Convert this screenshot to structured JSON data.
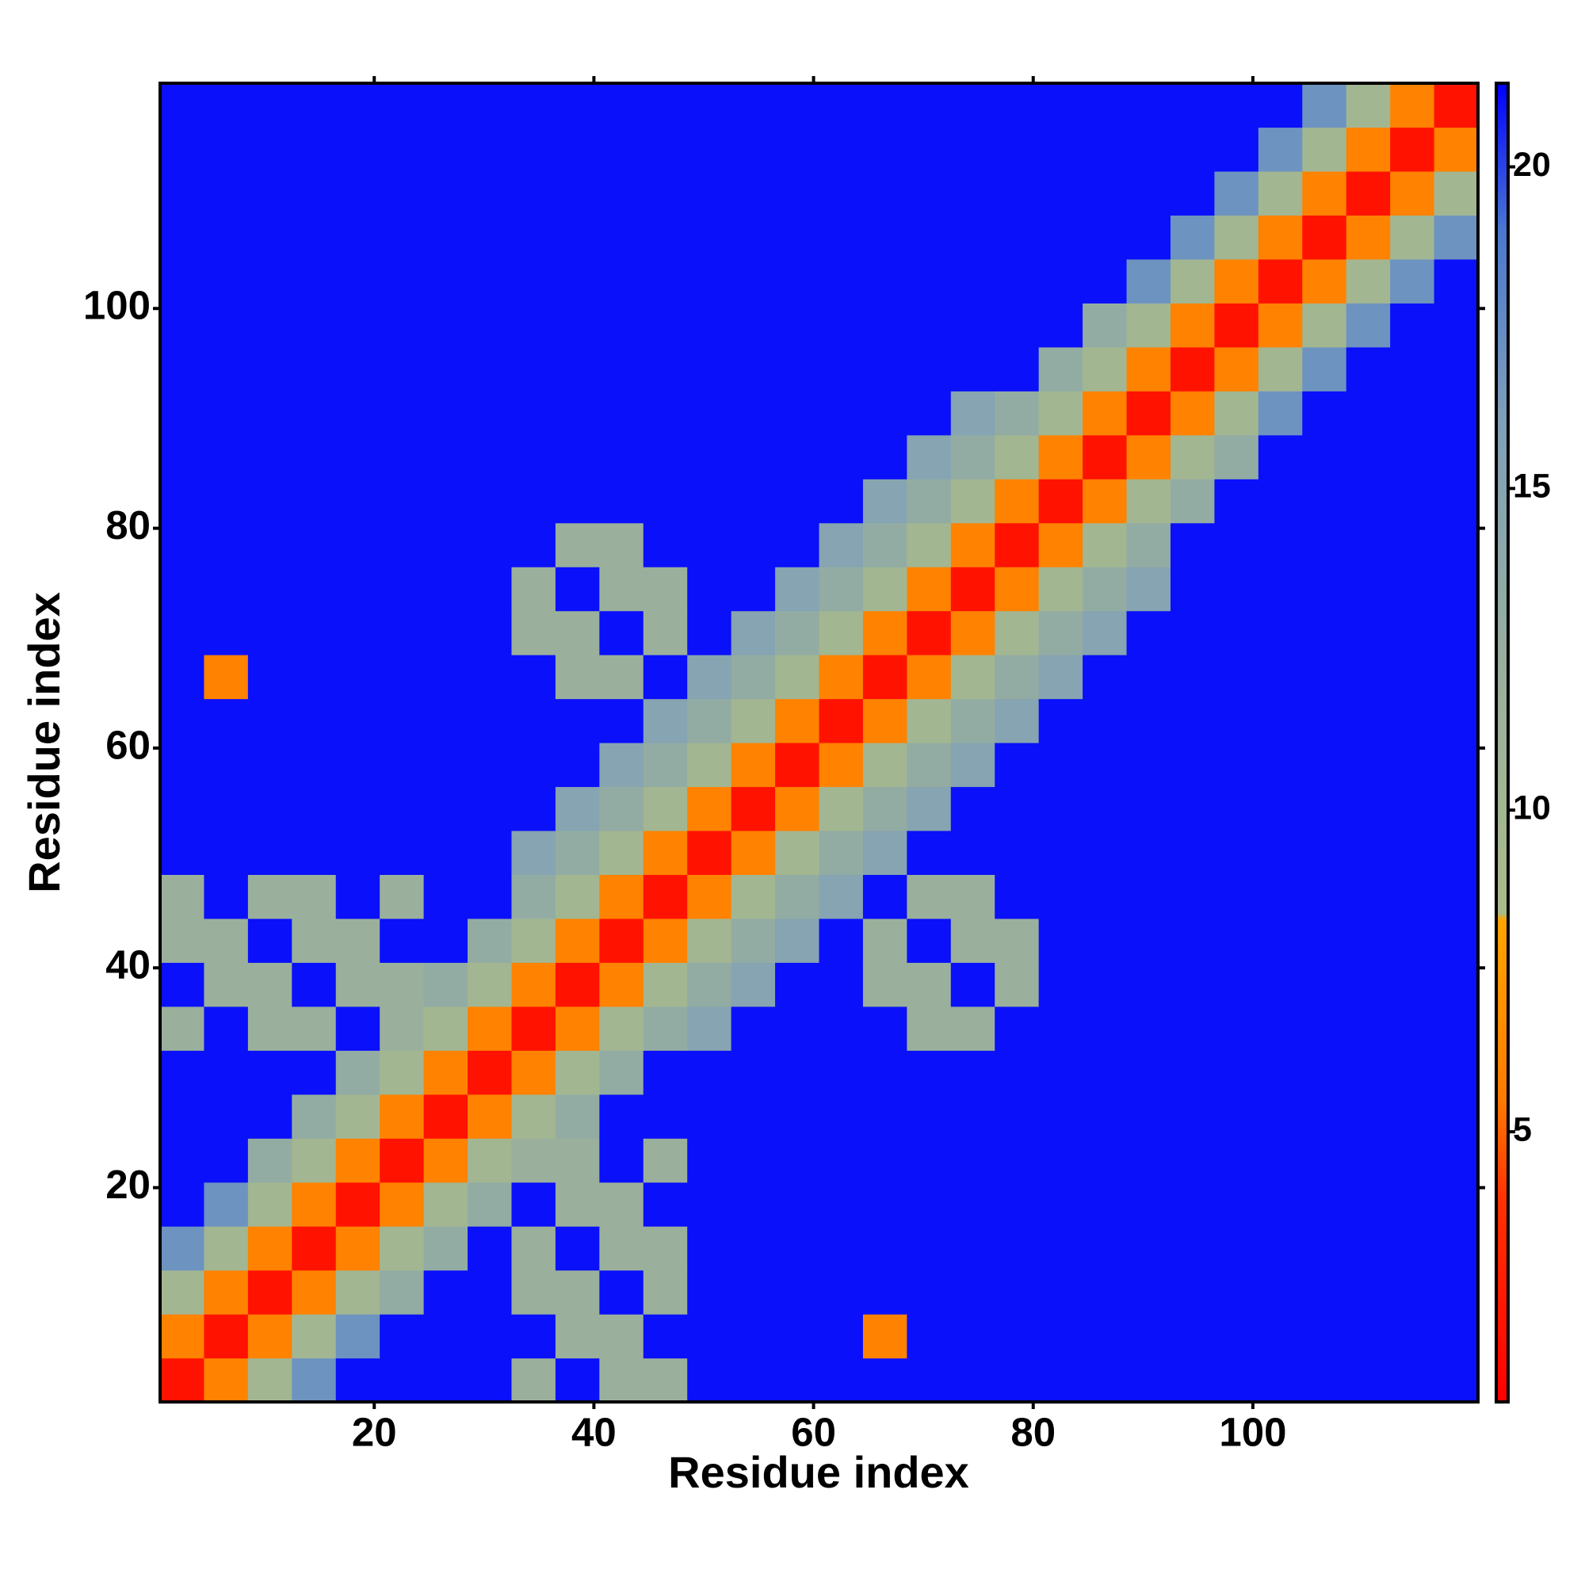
{
  "chart_data": {
    "type": "heatmap",
    "xlabel": "Residue index",
    "ylabel": "Residue index",
    "xlim": [
      0.5,
      120.5
    ],
    "ylim": [
      0.5,
      120.5
    ],
    "xticks": [
      20,
      40,
      60,
      80,
      100
    ],
    "yticks": [
      20,
      40,
      60,
      80,
      100
    ],
    "clim": [
      0.8,
      21.3
    ],
    "cticks": [
      5,
      10,
      15,
      20
    ],
    "colorscale": [
      {
        "value": 0.8,
        "color": "#ff0000"
      },
      {
        "value": 4,
        "color": "#ff3300"
      },
      {
        "value": 5.5,
        "color": "#ff7a00"
      },
      {
        "value": 8.3,
        "color": "#ffa500"
      },
      {
        "value": 8.4,
        "color": "#a9bb8a"
      },
      {
        "value": 12,
        "color": "#9ab09c"
      },
      {
        "value": 16,
        "color": "#7fa0b8"
      },
      {
        "value": 19,
        "color": "#4a78d0"
      },
      {
        "value": 21.3,
        "color": "#0000ff"
      }
    ],
    "x": [
      2.5,
      6.5,
      10.5,
      14.5,
      18.5,
      22.5,
      26.5,
      30.5,
      34.5,
      38.5,
      42.5,
      46.5,
      50.5,
      54.5,
      58.5,
      62.5,
      66.5,
      70.5,
      74.5,
      78.5,
      82.5,
      86.5,
      90.5,
      94.5,
      98.5,
      102.5,
      106.5,
      110.5,
      114.5,
      118.5
    ],
    "y": [
      2.5,
      6.5,
      10.5,
      14.5,
      18.5,
      22.5,
      26.5,
      30.5,
      34.5,
      38.5,
      42.5,
      46.5,
      50.5,
      54.5,
      58.5,
      62.5,
      66.5,
      70.5,
      74.5,
      78.5,
      82.5,
      86.5,
      90.5,
      94.5,
      98.5,
      102.5,
      106.5,
      110.5,
      114.5,
      118.5
    ],
    "z": [
      [
        2,
        6,
        10,
        17,
        21,
        21,
        21,
        21,
        12,
        21,
        12,
        12,
        21,
        21,
        21,
        21,
        21,
        21,
        21,
        21,
        21,
        21,
        21,
        21,
        21,
        21,
        21,
        21,
        21,
        21
      ],
      [
        6,
        2,
        6,
        10,
        17,
        21,
        21,
        21,
        21,
        12,
        12,
        21,
        21,
        21,
        21,
        21,
        6,
        21,
        21,
        21,
        21,
        21,
        21,
        21,
        21,
        21,
        21,
        21,
        21,
        21
      ],
      [
        10,
        6,
        2,
        6,
        10,
        13,
        21,
        21,
        12,
        12,
        21,
        12,
        21,
        21,
        21,
        21,
        21,
        21,
        21,
        21,
        21,
        21,
        21,
        21,
        21,
        21,
        21,
        21,
        21,
        21
      ],
      [
        17,
        10,
        6,
        2,
        6,
        10,
        13,
        21,
        12,
        21,
        12,
        12,
        21,
        21,
        21,
        21,
        21,
        21,
        21,
        21,
        21,
        21,
        21,
        21,
        21,
        21,
        21,
        21,
        21,
        21
      ],
      [
        21,
        17,
        10,
        6,
        2,
        6,
        10,
        13,
        21,
        12,
        12,
        21,
        21,
        21,
        21,
        21,
        21,
        21,
        21,
        21,
        21,
        21,
        21,
        21,
        21,
        21,
        21,
        21,
        21,
        21
      ],
      [
        21,
        21,
        13,
        10,
        6,
        2,
        6,
        10,
        12,
        12,
        21,
        12,
        21,
        21,
        21,
        21,
        21,
        21,
        21,
        21,
        21,
        21,
        21,
        21,
        21,
        21,
        21,
        21,
        21,
        21
      ],
      [
        21,
        21,
        21,
        13,
        10,
        6,
        2,
        6,
        10,
        13,
        21,
        21,
        21,
        21,
        21,
        21,
        21,
        21,
        21,
        21,
        21,
        21,
        21,
        21,
        21,
        21,
        21,
        21,
        21,
        21
      ],
      [
        21,
        21,
        21,
        21,
        13,
        10,
        6,
        2,
        6,
        10,
        13,
        21,
        21,
        21,
        21,
        21,
        21,
        21,
        21,
        21,
        21,
        21,
        21,
        21,
        21,
        21,
        21,
        21,
        21,
        21
      ],
      [
        12,
        21,
        12,
        12,
        21,
        12,
        10,
        6,
        2,
        6,
        10,
        13,
        15,
        21,
        21,
        21,
        21,
        12,
        12,
        21,
        21,
        21,
        21,
        21,
        21,
        21,
        21,
        21,
        21,
        21
      ],
      [
        21,
        12,
        12,
        21,
        12,
        12,
        13,
        10,
        6,
        2,
        6,
        10,
        13,
        15,
        21,
        21,
        12,
        12,
        21,
        12,
        21,
        21,
        21,
        21,
        21,
        21,
        21,
        21,
        21,
        21
      ],
      [
        12,
        12,
        21,
        12,
        12,
        21,
        21,
        13,
        10,
        6,
        2,
        6,
        10,
        13,
        15,
        21,
        12,
        21,
        12,
        12,
        21,
        21,
        21,
        21,
        21,
        21,
        21,
        21,
        21,
        21
      ],
      [
        12,
        21,
        12,
        12,
        21,
        12,
        21,
        21,
        13,
        10,
        6,
        2,
        6,
        10,
        13,
        15,
        21,
        12,
        12,
        21,
        21,
        21,
        21,
        21,
        21,
        21,
        21,
        21,
        21,
        21
      ],
      [
        21,
        21,
        21,
        21,
        21,
        21,
        21,
        21,
        15,
        13,
        10,
        6,
        2,
        6,
        10,
        13,
        15,
        21,
        21,
        21,
        21,
        21,
        21,
        21,
        21,
        21,
        21,
        21,
        21,
        21
      ],
      [
        21,
        21,
        21,
        21,
        21,
        21,
        21,
        21,
        21,
        15,
        13,
        10,
        6,
        2,
        6,
        10,
        13,
        15,
        21,
        21,
        21,
        21,
        21,
        21,
        21,
        21,
        21,
        21,
        21,
        21
      ],
      [
        21,
        21,
        21,
        21,
        21,
        21,
        21,
        21,
        21,
        21,
        15,
        13,
        10,
        6,
        2,
        6,
        10,
        13,
        15,
        21,
        21,
        21,
        21,
        21,
        21,
        21,
        21,
        21,
        21,
        21
      ],
      [
        21,
        21,
        21,
        21,
        21,
        21,
        21,
        21,
        21,
        21,
        21,
        15,
        13,
        10,
        6,
        2,
        6,
        10,
        13,
        15,
        21,
        21,
        21,
        21,
        21,
        21,
        21,
        21,
        21,
        21
      ],
      [
        21,
        6,
        21,
        21,
        21,
        21,
        21,
        21,
        21,
        12,
        12,
        21,
        15,
        13,
        10,
        6,
        2,
        6,
        10,
        13,
        15,
        21,
        21,
        21,
        21,
        21,
        21,
        21,
        21,
        21
      ],
      [
        21,
        21,
        21,
        21,
        21,
        21,
        21,
        21,
        12,
        12,
        21,
        12,
        21,
        15,
        13,
        10,
        6,
        2,
        6,
        10,
        13,
        15,
        21,
        21,
        21,
        21,
        21,
        21,
        21,
        21
      ],
      [
        21,
        21,
        21,
        21,
        21,
        21,
        21,
        21,
        12,
        21,
        12,
        12,
        21,
        21,
        15,
        13,
        10,
        6,
        2,
        6,
        10,
        13,
        15,
        21,
        21,
        21,
        21,
        21,
        21,
        21
      ],
      [
        21,
        21,
        21,
        21,
        21,
        21,
        21,
        21,
        21,
        12,
        12,
        21,
        21,
        21,
        21,
        15,
        13,
        10,
        6,
        2,
        6,
        10,
        13,
        21,
        21,
        21,
        21,
        21,
        21,
        21
      ],
      [
        21,
        21,
        21,
        21,
        21,
        21,
        21,
        21,
        21,
        21,
        21,
        21,
        21,
        21,
        21,
        21,
        15,
        13,
        10,
        6,
        2,
        6,
        10,
        13,
        21,
        21,
        21,
        21,
        21,
        21
      ],
      [
        21,
        21,
        21,
        21,
        21,
        21,
        21,
        21,
        21,
        21,
        21,
        21,
        21,
        21,
        21,
        21,
        21,
        15,
        13,
        10,
        6,
        2,
        6,
        10,
        13,
        21,
        21,
        21,
        21,
        21
      ],
      [
        21,
        21,
        21,
        21,
        21,
        21,
        21,
        21,
        21,
        21,
        21,
        21,
        21,
        21,
        21,
        21,
        21,
        21,
        15,
        13,
        10,
        6,
        2,
        6,
        10,
        17,
        21,
        21,
        21,
        21
      ],
      [
        21,
        21,
        21,
        21,
        21,
        21,
        21,
        21,
        21,
        21,
        21,
        21,
        21,
        21,
        21,
        21,
        21,
        21,
        21,
        21,
        13,
        10,
        6,
        2,
        6,
        10,
        17,
        21,
        21,
        21
      ],
      [
        21,
        21,
        21,
        21,
        21,
        21,
        21,
        21,
        21,
        21,
        21,
        21,
        21,
        21,
        21,
        21,
        21,
        21,
        21,
        21,
        21,
        13,
        10,
        6,
        2,
        6,
        10,
        17,
        21,
        21
      ],
      [
        21,
        21,
        21,
        21,
        21,
        21,
        21,
        21,
        21,
        21,
        21,
        21,
        21,
        21,
        21,
        21,
        21,
        21,
        21,
        21,
        21,
        21,
        17,
        10,
        6,
        2,
        6,
        10,
        17,
        21
      ],
      [
        21,
        21,
        21,
        21,
        21,
        21,
        21,
        21,
        21,
        21,
        21,
        21,
        21,
        21,
        21,
        21,
        21,
        21,
        21,
        21,
        21,
        21,
        21,
        17,
        10,
        6,
        2,
        6,
        10,
        17
      ],
      [
        21,
        21,
        21,
        21,
        21,
        21,
        21,
        21,
        21,
        21,
        21,
        21,
        21,
        21,
        21,
        21,
        21,
        21,
        21,
        21,
        21,
        21,
        21,
        21,
        17,
        10,
        6,
        2,
        6,
        10
      ],
      [
        21,
        21,
        21,
        21,
        21,
        21,
        21,
        21,
        21,
        21,
        21,
        21,
        21,
        21,
        21,
        21,
        21,
        21,
        21,
        21,
        21,
        21,
        21,
        21,
        21,
        17,
        10,
        6,
        2,
        6
      ],
      [
        21,
        21,
        21,
        21,
        21,
        21,
        21,
        21,
        21,
        21,
        21,
        21,
        21,
        21,
        21,
        21,
        21,
        21,
        21,
        21,
        21,
        21,
        21,
        21,
        21,
        21,
        17,
        10,
        6,
        2
      ]
    ]
  }
}
